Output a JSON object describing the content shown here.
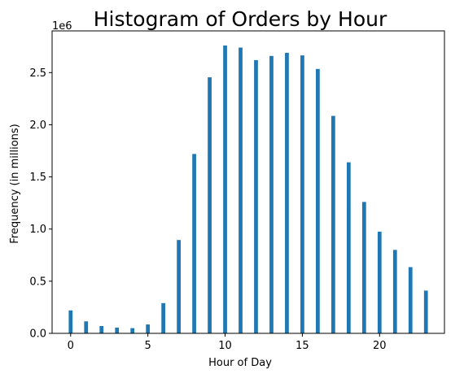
{
  "chart_data": {
    "type": "bar",
    "title": "Histogram of Orders by Hour",
    "xlabel": "Hour of Day",
    "ylabel": "Frequency (in millions)",
    "y_offset_label": "1e6",
    "xlim": [
      -1.2,
      24.2
    ],
    "ylim": [
      0,
      2.9
    ],
    "x_ticks": [
      {
        "value": 0,
        "label": "0"
      },
      {
        "value": 5,
        "label": "5"
      },
      {
        "value": 10,
        "label": "10"
      },
      {
        "value": 15,
        "label": "15"
      },
      {
        "value": 20,
        "label": "20"
      }
    ],
    "y_ticks": [
      {
        "value": 0,
        "label": "0.0"
      },
      {
        "value": 0.5,
        "label": "0.5"
      },
      {
        "value": 1.0,
        "label": "1.0"
      },
      {
        "value": 1.5,
        "label": "1.5"
      },
      {
        "value": 2.0,
        "label": "2.0"
      },
      {
        "value": 2.5,
        "label": "2.5"
      }
    ],
    "bar_color": "#1f77b4",
    "bar_width": 0.25,
    "grid": false,
    "x": [
      0,
      1,
      2,
      3,
      4,
      5,
      6,
      7,
      8,
      9,
      10,
      11,
      12,
      13,
      14,
      15,
      16,
      17,
      18,
      19,
      20,
      21,
      22,
      23
    ],
    "values": [
      0.22,
      0.115,
      0.07,
      0.055,
      0.05,
      0.085,
      0.29,
      0.895,
      1.72,
      2.455,
      2.76,
      2.74,
      2.62,
      2.66,
      2.69,
      2.665,
      2.535,
      2.085,
      1.64,
      1.26,
      0.975,
      0.8,
      0.635,
      0.41
    ]
  }
}
